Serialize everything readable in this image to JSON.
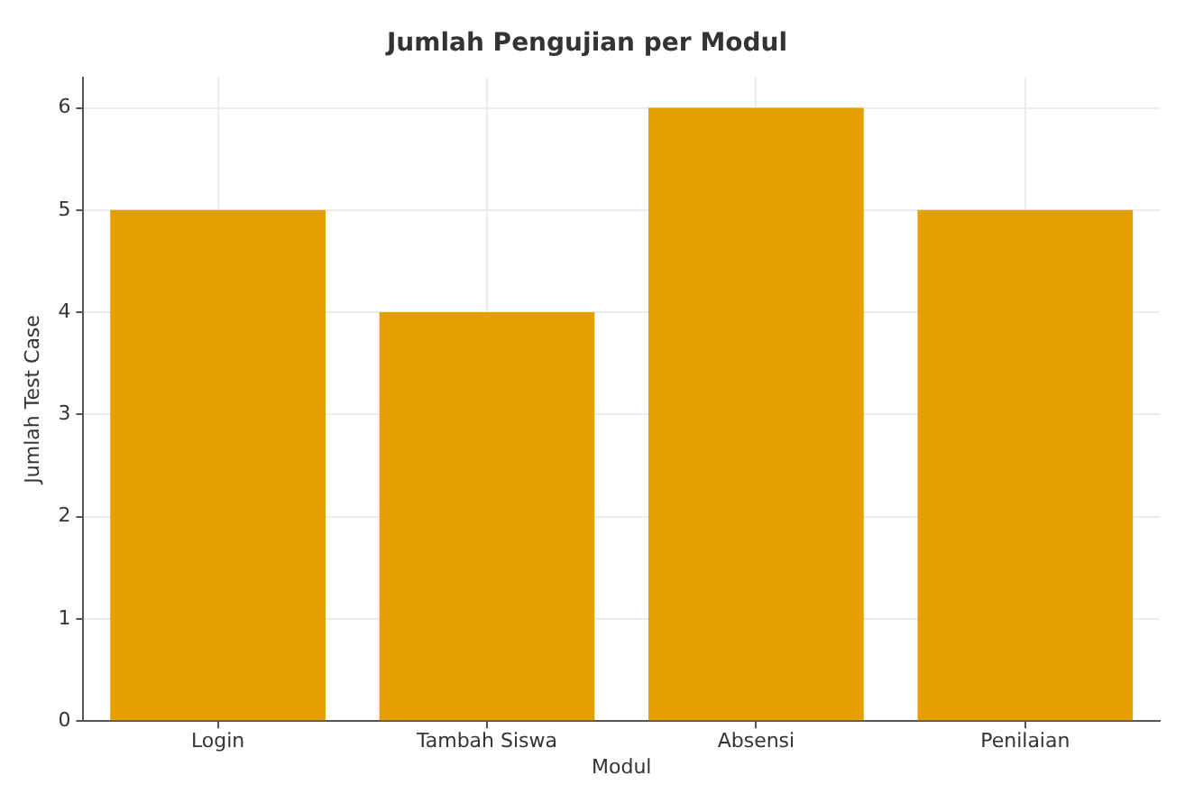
{
  "chart_data": {
    "type": "bar",
    "title": "Jumlah Pengujian per Modul",
    "xlabel": "Modul",
    "ylabel": "Jumlah Test Case",
    "categories": [
      "Login",
      "Tambah Siswa",
      "Absensi",
      "Penilaian"
    ],
    "values": [
      5,
      4,
      6,
      5
    ],
    "color": "#e69f00",
    "ylim": [
      0,
      6.3
    ],
    "yticks": [
      0,
      1,
      2,
      3,
      4,
      5,
      6
    ],
    "grid": true
  }
}
